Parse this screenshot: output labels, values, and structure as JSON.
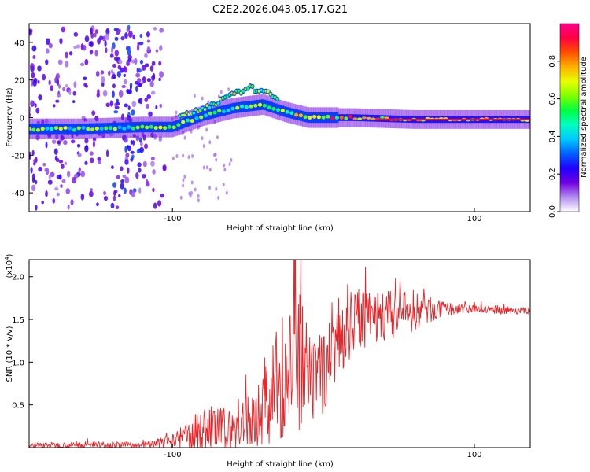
{
  "figure_title": "C2E2.2026.043.05.17.G21",
  "chart_data": [
    {
      "type": "heatmap",
      "title": "C2E2.2026.043.05.17.G21",
      "xlabel": "Height of straight line (km)",
      "ylabel": "Frequency (Hz)",
      "xlim": [
        -195,
        137
      ],
      "ylim": [
        -50,
        50
      ],
      "xticks": [
        -100,
        100
      ],
      "yticks": [
        -40,
        -20,
        0,
        20,
        40
      ],
      "colorbar": {
        "label": "Normalized spectral amplitude",
        "range": [
          0,
          1
        ],
        "ticks": [
          0.0,
          0.2,
          0.4,
          0.6,
          0.8
        ],
        "colormap": [
          "#ffffff",
          "#b28cf0",
          "#7000e0",
          "#2000ff",
          "#0060ff",
          "#00c8ff",
          "#00ffc0",
          "#00ff40",
          "#80ff00",
          "#e8ff00",
          "#ffb000",
          "#ff5000",
          "#ff0040",
          "#ff0090"
        ]
      },
      "ridge": [
        {
          "x": -195,
          "y": -6
        },
        {
          "x": -160,
          "y": -6
        },
        {
          "x": -120,
          "y": -5
        },
        {
          "x": -100,
          "y": -5
        },
        {
          "x": -80,
          "y": 1
        },
        {
          "x": -60,
          "y": 5
        },
        {
          "x": -40,
          "y": 7
        },
        {
          "x": -25,
          "y": 3
        },
        {
          "x": -10,
          "y": 0
        },
        {
          "x": 0,
          "y": 0
        },
        {
          "x": 20,
          "y": 0
        },
        {
          "x": 60,
          "y": -1
        },
        {
          "x": 100,
          "y": -1
        },
        {
          "x": 137,
          "y": -1
        }
      ],
      "upper_branch": [
        {
          "x": -95,
          "y": 0
        },
        {
          "x": -80,
          "y": 5
        },
        {
          "x": -65,
          "y": 10
        },
        {
          "x": -50,
          "y": 16
        },
        {
          "x": -40,
          "y": 14
        },
        {
          "x": -30,
          "y": 10
        }
      ],
      "noise_bands": [
        {
          "x_from": -195,
          "x_to": -105,
          "y_from": -48,
          "y_to": 48
        }
      ]
    },
    {
      "type": "line",
      "title": "",
      "xlabel": "Height of straight line (km)",
      "ylabel": "SNR (10 * v/v)",
      "y_scale_label": "(x10",
      "y_scale_exponent": "4",
      "xlim": [
        -195,
        137
      ],
      "ylim": [
        0,
        2.2
      ],
      "xticks": [
        -100,
        100
      ],
      "yticks": [
        0.5,
        1.0,
        1.5,
        2.0
      ],
      "series": [
        {
          "name": "SNR",
          "color": "#e8262a",
          "envelope": [
            {
              "x": -195,
              "mean": 0.03,
              "amp": 0.03
            },
            {
              "x": -140,
              "mean": 0.03,
              "amp": 0.04
            },
            {
              "x": -120,
              "mean": 0.03,
              "amp": 0.03
            },
            {
              "x": -100,
              "mean": 0.07,
              "amp": 0.08
            },
            {
              "x": -85,
              "mean": 0.18,
              "amp": 0.22
            },
            {
              "x": -75,
              "mean": 0.22,
              "amp": 0.28
            },
            {
              "x": -60,
              "mean": 0.2,
              "amp": 0.25
            },
            {
              "x": -45,
              "mean": 0.35,
              "amp": 0.35
            },
            {
              "x": -35,
              "mean": 0.6,
              "amp": 0.55
            },
            {
              "x": -25,
              "mean": 0.9,
              "amp": 0.8
            },
            {
              "x": -15,
              "mean": 0.95,
              "amp": 0.85
            },
            {
              "x": -8,
              "mean": 0.7,
              "amp": 0.5
            },
            {
              "x": 0,
              "mean": 0.9,
              "amp": 0.5
            },
            {
              "x": 10,
              "mean": 1.3,
              "amp": 0.45
            },
            {
              "x": 25,
              "mean": 1.5,
              "amp": 0.35
            },
            {
              "x": 45,
              "mean": 1.55,
              "amp": 0.3
            },
            {
              "x": 60,
              "mean": 1.6,
              "amp": 0.25
            },
            {
              "x": 80,
              "mean": 1.62,
              "amp": 0.08
            },
            {
              "x": 100,
              "mean": 1.62,
              "amp": 0.05
            },
            {
              "x": 137,
              "mean": 1.6,
              "amp": 0.04
            }
          ]
        }
      ]
    }
  ]
}
